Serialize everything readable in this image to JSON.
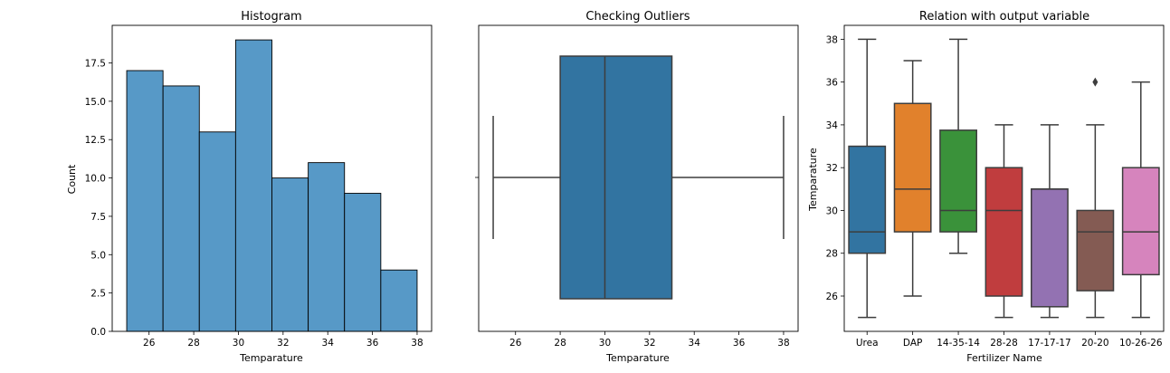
{
  "chart_data": [
    {
      "type": "bar",
      "subtype": "histogram",
      "title": "Histogram",
      "xlabel": "Temparature",
      "ylabel": "Count",
      "bin_edges": [
        25,
        26.625,
        28.25,
        29.875,
        31.5,
        33.125,
        34.75,
        36.375,
        38
      ],
      "values": [
        17,
        16,
        13,
        19,
        10,
        11,
        9,
        4
      ],
      "xlim": [
        24.35,
        38.65
      ],
      "ylim": [
        0,
        19.95
      ],
      "xticks": [
        "26",
        "28",
        "30",
        "32",
        "34",
        "36",
        "38"
      ],
      "yticks": [
        "0.0",
        "2.5",
        "5.0",
        "7.5",
        "10.0",
        "12.5",
        "15.0",
        "17.5"
      ],
      "color": "#5799c7",
      "grid": false
    },
    {
      "type": "box",
      "title": "Checking Outliers",
      "xlabel": "Temparature",
      "ylabel": "",
      "orientation": "horizontal",
      "box": {
        "whisker_low": 25,
        "q1": 28,
        "median": 30,
        "q3": 33,
        "whisker_high": 38
      },
      "xlim": [
        24.35,
        38.65
      ],
      "xticks": [
        "26",
        "28",
        "30",
        "32",
        "34",
        "36",
        "38"
      ],
      "color": "#3274a1",
      "grid": false
    },
    {
      "type": "box",
      "title": "Relation with output variable",
      "xlabel": "Fertilizer Name",
      "ylabel": "Temparature",
      "orientation": "vertical",
      "categories": [
        "Urea",
        "DAP",
        "14-35-14",
        "28-28",
        "17-17-17",
        "20-20",
        "10-26-26"
      ],
      "boxes": [
        {
          "whisker_low": 25,
          "q1": 28,
          "median": 29,
          "q3": 33,
          "whisker_high": 38,
          "outliers": [],
          "color": "#3274a1"
        },
        {
          "whisker_low": 26,
          "q1": 29,
          "median": 31,
          "q3": 35,
          "whisker_high": 37,
          "outliers": [],
          "color": "#e1812c"
        },
        {
          "whisker_low": 28,
          "q1": 29,
          "median": 30,
          "q3": 33.75,
          "whisker_high": 38,
          "outliers": [],
          "color": "#3a923a"
        },
        {
          "whisker_low": 25,
          "q1": 26,
          "median": 30,
          "q3": 32,
          "whisker_high": 34,
          "outliers": [],
          "color": "#c03d3e"
        },
        {
          "whisker_low": 25,
          "q1": 25.5,
          "median": 31,
          "q3": 31,
          "whisker_high": 34,
          "outliers": [],
          "color": "#9372b2"
        },
        {
          "whisker_low": 25,
          "q1": 26.25,
          "median": 29,
          "q3": 30,
          "whisker_high": 34,
          "outliers": [
            36
          ],
          "color": "#845b53"
        },
        {
          "whisker_low": 25,
          "q1": 27,
          "median": 29,
          "q3": 32,
          "whisker_high": 36,
          "outliers": [],
          "color": "#d684bd"
        }
      ],
      "ylim": [
        24.35,
        38.65
      ],
      "yticks": [
        "26",
        "28",
        "30",
        "32",
        "34",
        "36",
        "38"
      ],
      "grid": false
    }
  ]
}
